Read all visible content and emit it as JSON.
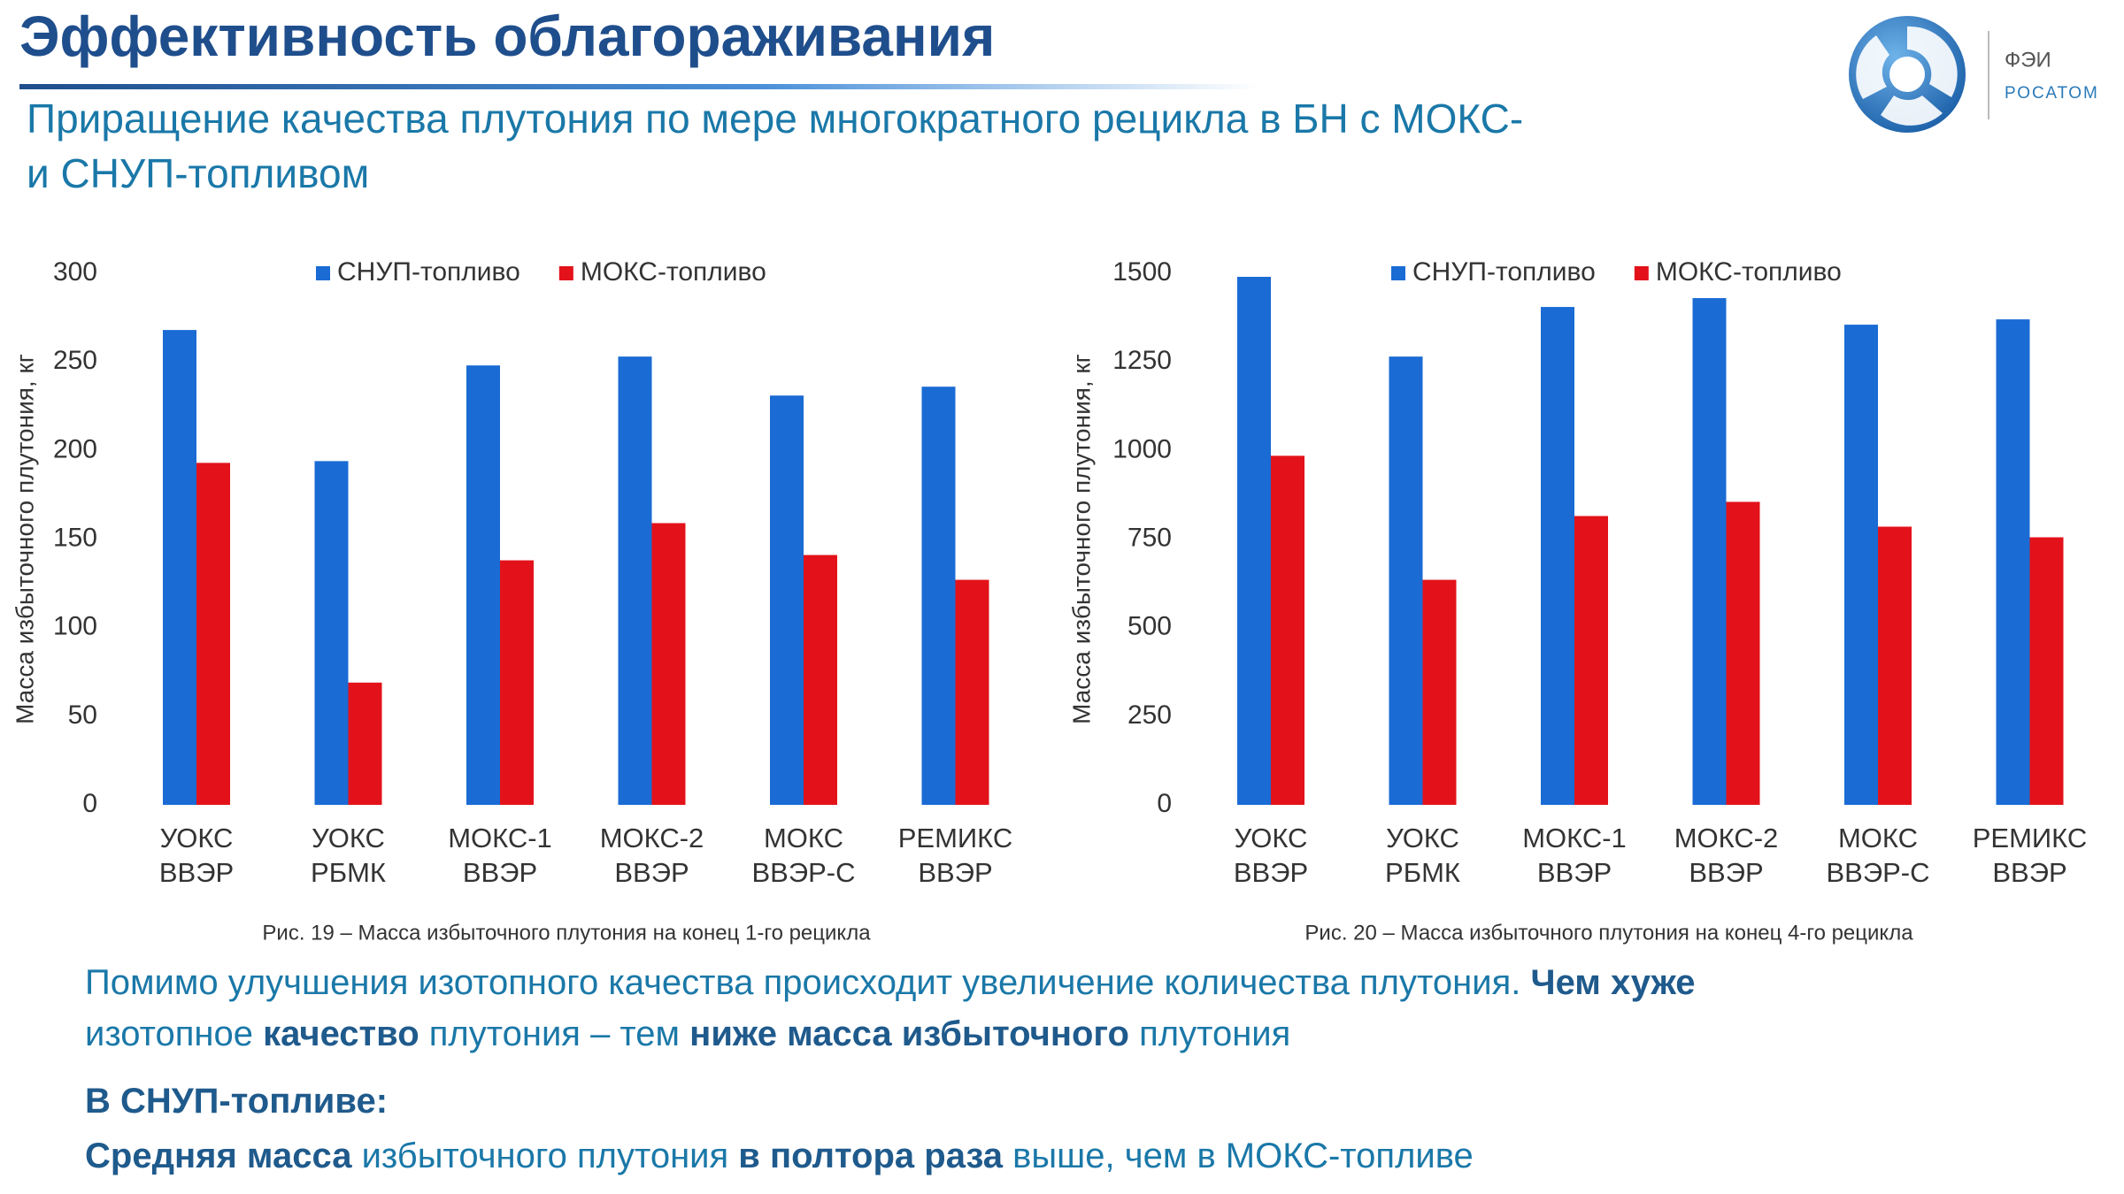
{
  "header": {
    "title": "Эффективность облагораживания",
    "subtitle_lines": [
      "Приращение качества плутония по мере многократного рецикла в БН с МОКС-",
      "и СНУП-топливом"
    ]
  },
  "logo": {
    "name": "ФЭИ",
    "org": "РОСАТОМ"
  },
  "chart_data": [
    {
      "type": "bar",
      "y_label": "Масса избыточного плутония, кг",
      "caption": "Рис. 19 – Масса избыточного плутония на конец 1-го рецикла",
      "categories": [
        [
          "УОКС",
          "ВВЭР"
        ],
        [
          "УОКС",
          "РБМК"
        ],
        [
          "МОКС-1",
          "ВВЭР"
        ],
        [
          "МОКС-2",
          "ВВЭР"
        ],
        [
          "МОКС",
          "ВВЭР-С"
        ],
        [
          "РЕМИКС",
          "ВВЭР"
        ]
      ],
      "series": [
        {
          "name": "СНУП-топливо",
          "color": "#1a6bd4",
          "values": [
            268,
            194,
            248,
            253,
            231,
            236
          ]
        },
        {
          "name": "МОКС-топливо",
          "color": "#e3121a",
          "values": [
            193,
            69,
            138,
            159,
            141,
            127
          ]
        }
      ],
      "ylim": [
        0,
        300
      ],
      "yticks": [
        0,
        50,
        100,
        150,
        200,
        250,
        300
      ],
      "grid": false,
      "legend": "top"
    },
    {
      "type": "bar",
      "y_label": "Масса избыточного плутония, кг",
      "caption": "Рис. 20 – Масса избыточного плутония на конец 4-го рецикла",
      "categories": [
        [
          "УОКС",
          "ВВЭР"
        ],
        [
          "УОКС",
          "РБМК"
        ],
        [
          "МОКС-1",
          "ВВЭР"
        ],
        [
          "МОКС-2",
          "ВВЭР"
        ],
        [
          "МОКС",
          "ВВЭР-С"
        ],
        [
          "РЕМИКС",
          "ВВЭР"
        ]
      ],
      "series": [
        {
          "name": "СНУП-топливо",
          "color": "#1a6bd4",
          "values": [
            1490,
            1265,
            1405,
            1430,
            1355,
            1370
          ]
        },
        {
          "name": "МОКС-топливо",
          "color": "#e3121a",
          "values": [
            985,
            635,
            815,
            855,
            785,
            755
          ]
        }
      ],
      "ylim": [
        0,
        1500
      ],
      "yticks": [
        0,
        250,
        500,
        750,
        1000,
        1250,
        1500
      ],
      "grid": false,
      "legend": "top"
    }
  ],
  "body": {
    "lines": [
      [
        {
          "text": "Помимо улучшения изотопного качества происходит увеличение количества плутония. ",
          "bold": false
        },
        {
          "text": "Чем хуже",
          "bold": true
        }
      ],
      [
        {
          "text": "изотопное ",
          "bold": false
        },
        {
          "text": "качество",
          "bold": true
        },
        {
          "text": " плутония – тем ",
          "bold": false
        },
        {
          "text": "ниже масса избыточного",
          "bold": true
        },
        {
          "text": " плутония",
          "bold": false
        }
      ],
      [
        {
          "text": "В СНУП-топливе:",
          "bold": true
        }
      ],
      [
        {
          "text": "Средняя масса",
          "bold": true
        },
        {
          "text": " избыточного плутония ",
          "bold": false
        },
        {
          "text": "в полтора раза",
          "bold": true
        },
        {
          "text": " выше, чем в МОКС-топливе",
          "bold": false
        }
      ]
    ]
  }
}
